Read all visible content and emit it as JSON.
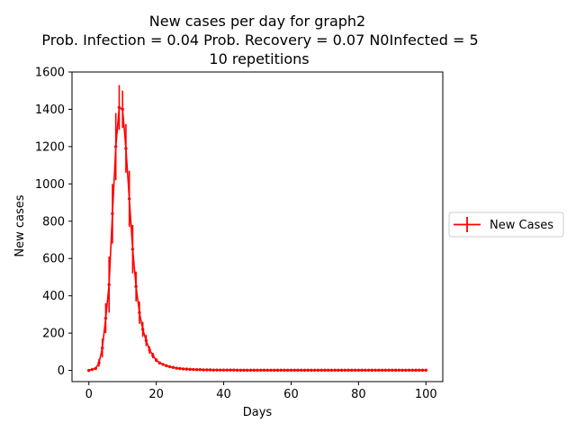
{
  "chart_data": {
    "type": "line",
    "title_lines": [
      "New cases per day for graph2",
      "Prob. Infection = 0.04   Prob. Recovery = 0.07  N0Infected = 5",
      "10 repetitions"
    ],
    "xlabel": "Days",
    "ylabel": "New cases",
    "xlim": [
      -5,
      105
    ],
    "ylim": [
      -60,
      1600
    ],
    "xticks": [
      0,
      20,
      40,
      60,
      80,
      100
    ],
    "yticks": [
      0,
      200,
      400,
      600,
      800,
      1000,
      1200,
      1400,
      1600
    ],
    "grid": false,
    "legend_position": "outside-right",
    "colors": {
      "series": "#ff0000"
    },
    "series": [
      {
        "name": "New Cases",
        "x": [
          0,
          1,
          2,
          3,
          4,
          5,
          6,
          7,
          8,
          9,
          10,
          11,
          12,
          13,
          14,
          15,
          16,
          17,
          18,
          19,
          20,
          21,
          22,
          23,
          24,
          25,
          26,
          27,
          28,
          29,
          30,
          31,
          32,
          33,
          34,
          35,
          36,
          37,
          38,
          39,
          40,
          41,
          42,
          43,
          44,
          45,
          46,
          47,
          48,
          49,
          50,
          51,
          52,
          53,
          54,
          55,
          56,
          57,
          58,
          59,
          60,
          61,
          62,
          63,
          64,
          65,
          66,
          67,
          68,
          69,
          70,
          71,
          72,
          73,
          74,
          75,
          76,
          77,
          78,
          79,
          80,
          81,
          82,
          83,
          84,
          85,
          86,
          87,
          88,
          89,
          90,
          91,
          92,
          93,
          94,
          95,
          96,
          97,
          98,
          99,
          100
        ],
        "values": [
          0,
          5,
          10,
          40,
          120,
          280,
          460,
          840,
          1200,
          1410,
          1400,
          1190,
          920,
          650,
          450,
          310,
          220,
          160,
          110,
          80,
          55,
          40,
          32,
          25,
          20,
          16,
          12,
          10,
          8,
          7,
          6,
          5,
          4,
          4,
          3,
          3,
          3,
          2,
          2,
          2,
          2,
          2,
          2,
          2,
          1,
          1,
          1,
          1,
          1,
          1,
          1,
          1,
          1,
          1,
          1,
          1,
          1,
          1,
          1,
          1,
          1,
          1,
          1,
          1,
          1,
          1,
          1,
          1,
          1,
          1,
          1,
          1,
          1,
          1,
          1,
          1,
          1,
          1,
          1,
          1,
          1,
          1,
          1,
          1,
          1,
          1,
          1,
          1,
          1,
          1,
          1,
          1,
          1,
          1,
          1,
          1,
          1,
          1,
          1,
          1,
          1
        ],
        "error": [
          0,
          3,
          6,
          20,
          50,
          80,
          150,
          160,
          180,
          120,
          100,
          130,
          150,
          130,
          80,
          60,
          40,
          30,
          20,
          15,
          10,
          8,
          6,
          5,
          4,
          3,
          2,
          2,
          2,
          1,
          1,
          1,
          1,
          1,
          1,
          1,
          1,
          1,
          1,
          1,
          1,
          1,
          1,
          1,
          1,
          1,
          1,
          1,
          1,
          1,
          1,
          1,
          1,
          1,
          1,
          1,
          1,
          1,
          1,
          1,
          1,
          1,
          1,
          1,
          1,
          1,
          1,
          1,
          1,
          1,
          1,
          1,
          1,
          1,
          1,
          1,
          1,
          1,
          1,
          1,
          1,
          1,
          1,
          1,
          1,
          1,
          1,
          1,
          1,
          1,
          1,
          1,
          1,
          1,
          1,
          1,
          1,
          1,
          1,
          1,
          1
        ]
      }
    ]
  }
}
